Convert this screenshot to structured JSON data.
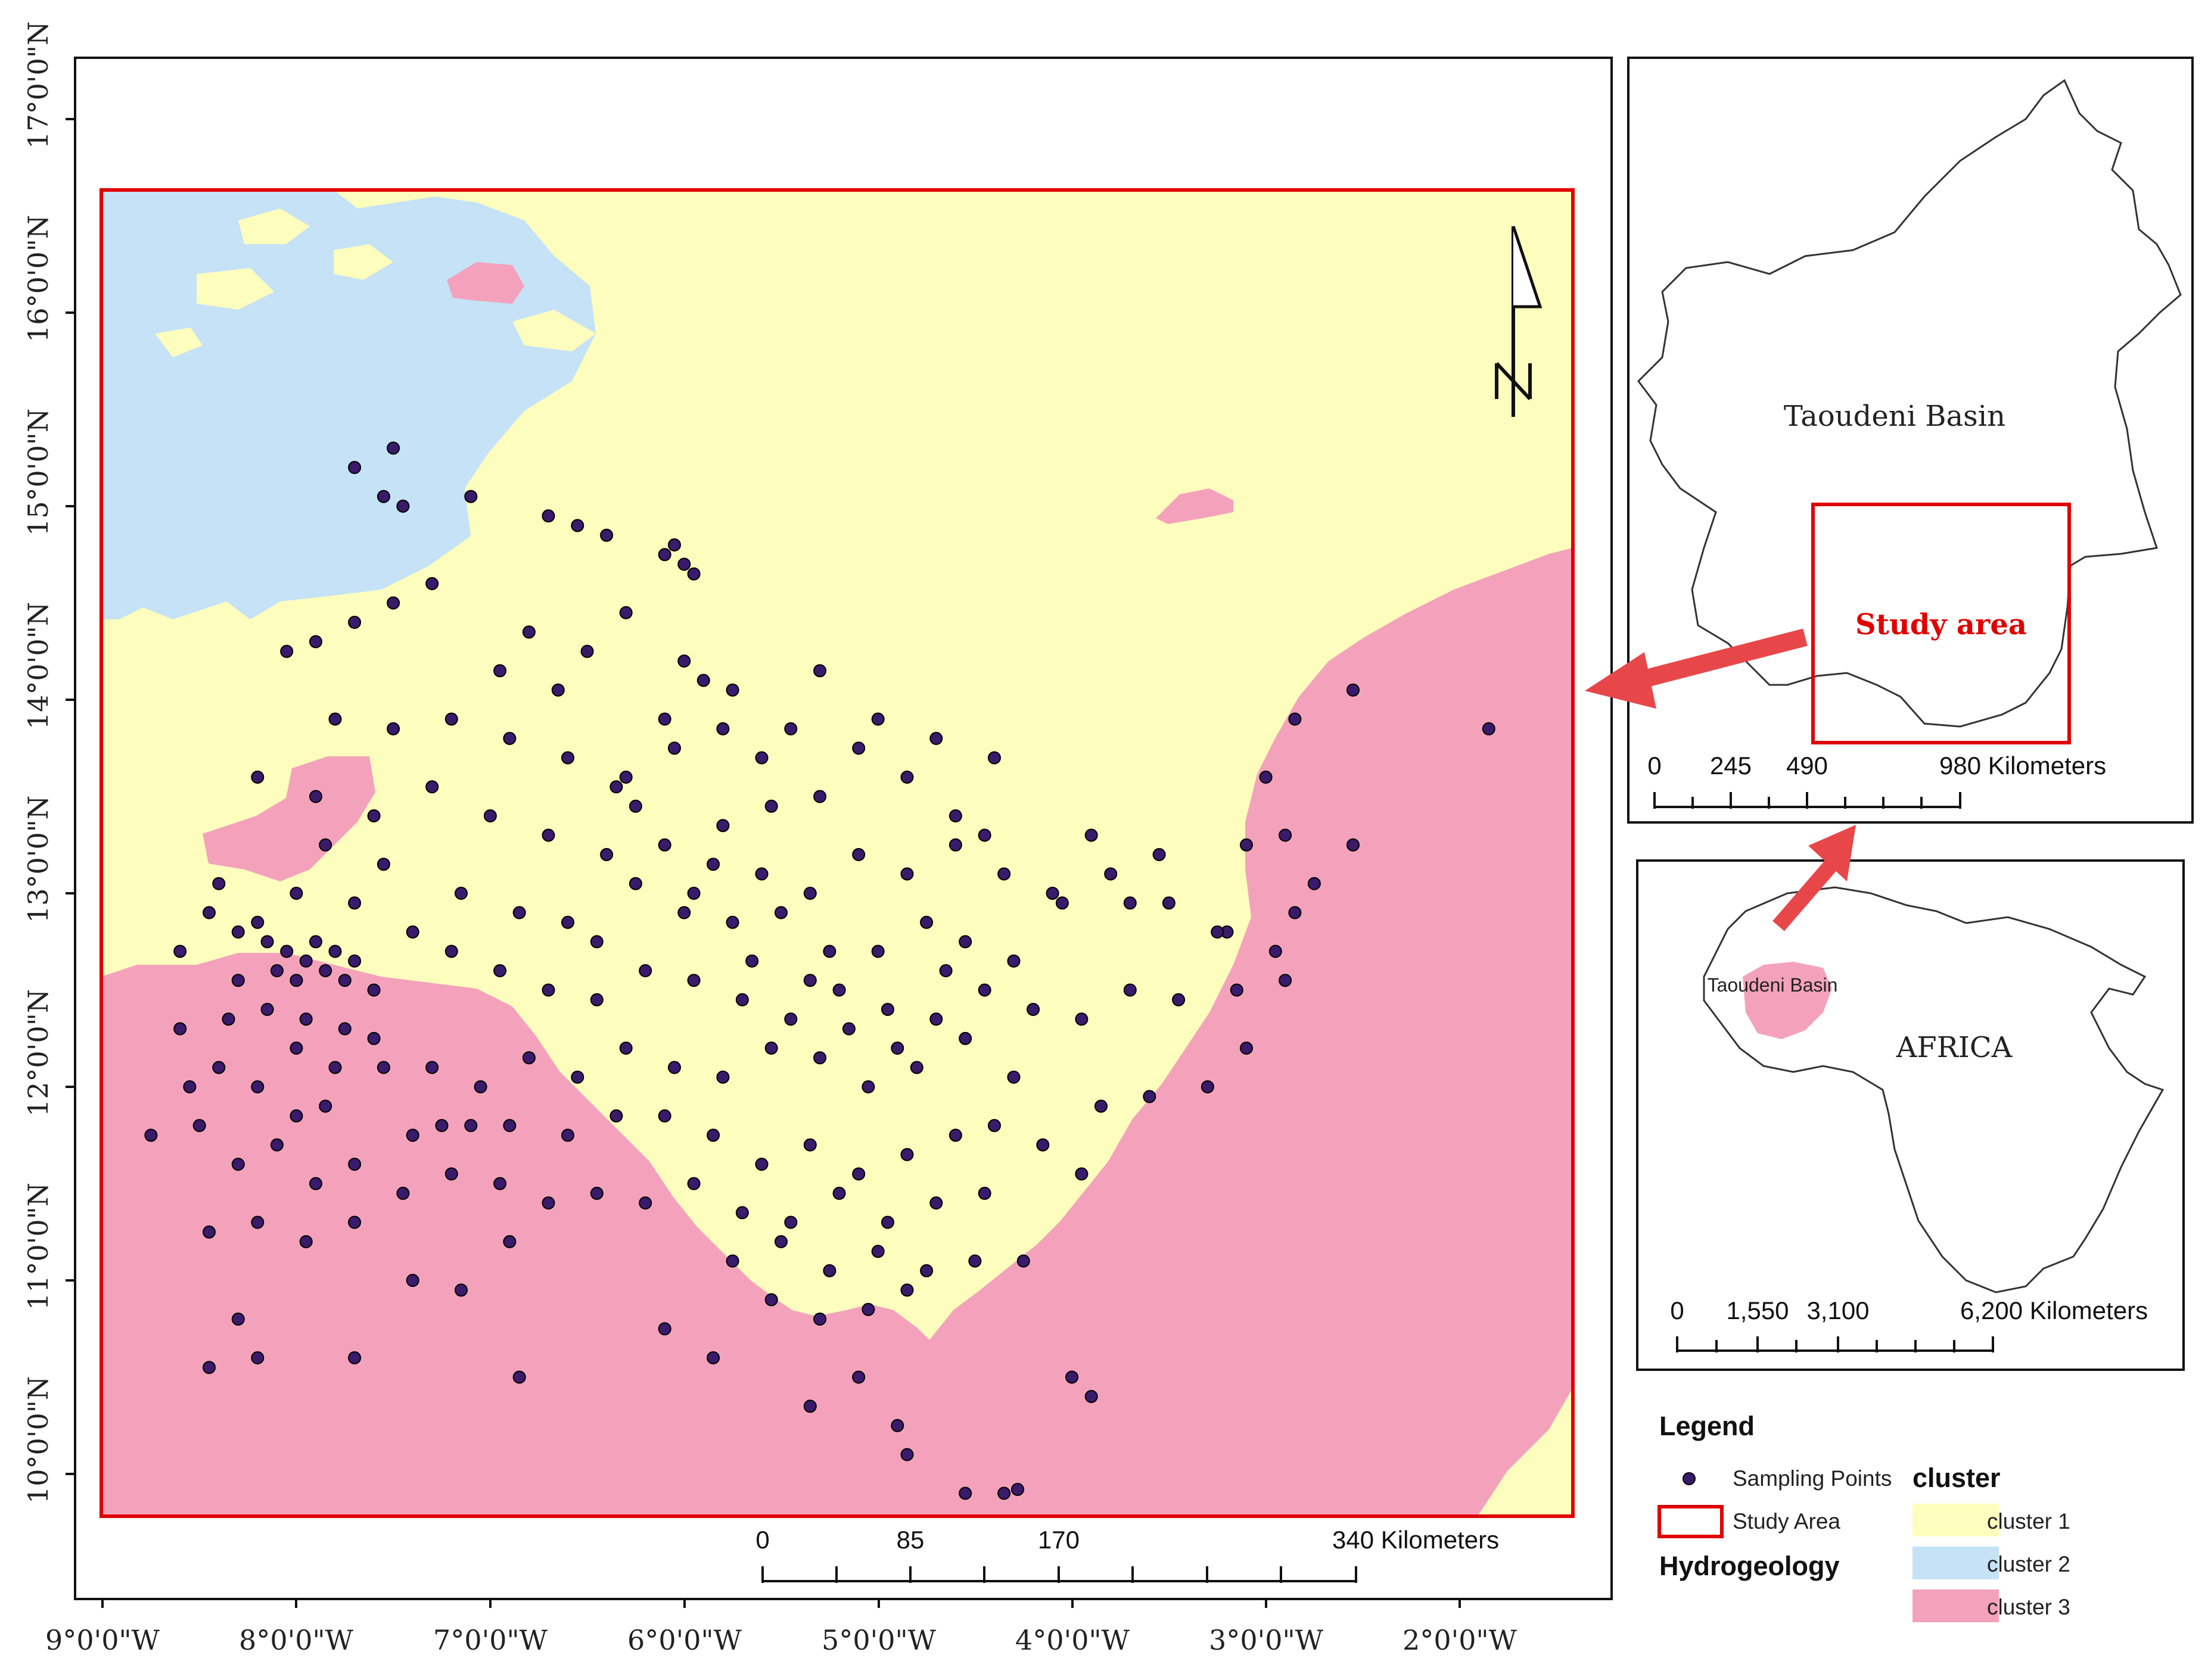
{
  "colors": {
    "cluster1": "#fdfdbd",
    "cluster2": "#c5e2f6",
    "cluster3": "#f4a2bc",
    "study_area_outline": "#e00000",
    "sampling_point": "#3a1a6b",
    "arrow": "#e8474a"
  },
  "main_map": {
    "latitude_labels": [
      "17°0'0\"N",
      "16°0'0\"N",
      "15°0'0\"N",
      "14°0'0\"N",
      "13°0'0\"N",
      "12°0'0\"N",
      "11°0'0\"N",
      "10°0'0\"N"
    ],
    "longitude_labels": [
      "9°0'0\"W",
      "8°0'0\"W",
      "7°0'0\"W",
      "6°0'0\"W",
      "5°0'0\"W",
      "4°0'0\"W",
      "3°0'0\"W",
      "2°0'0\"W"
    ],
    "north_arrow_label": "N",
    "scale_bar": {
      "labels": [
        "0",
        "85",
        "170",
        "340 Kilometers"
      ]
    },
    "sampling_points_lonlat": [
      [
        -7.7,
        15.2
      ],
      [
        -7.5,
        15.3
      ],
      [
        -7.55,
        15.05
      ],
      [
        -7.45,
        15.0
      ],
      [
        -7.1,
        15.05
      ],
      [
        -6.7,
        14.95
      ],
      [
        -6.55,
        14.9
      ],
      [
        -6.4,
        14.85
      ],
      [
        -6.1,
        14.75
      ],
      [
        -6.05,
        14.8
      ],
      [
        -6.0,
        14.7
      ],
      [
        -5.95,
        14.65
      ],
      [
        -7.9,
        14.3
      ],
      [
        -7.7,
        14.4
      ],
      [
        -7.5,
        14.5
      ],
      [
        -8.05,
        14.25
      ],
      [
        -7.3,
        14.6
      ],
      [
        -6.8,
        14.35
      ],
      [
        -6.5,
        14.25
      ],
      [
        -6.0,
        14.2
      ],
      [
        -5.9,
        14.1
      ],
      [
        -7.8,
        13.9
      ],
      [
        -7.5,
        13.85
      ],
      [
        -7.2,
        13.9
      ],
      [
        -6.9,
        13.8
      ],
      [
        -6.6,
        13.7
      ],
      [
        -6.3,
        13.6
      ],
      [
        -6.1,
        13.9
      ],
      [
        -5.8,
        13.85
      ],
      [
        -5.6,
        13.7
      ],
      [
        -5.3,
        13.5
      ],
      [
        -5.0,
        13.9
      ],
      [
        -4.7,
        13.8
      ],
      [
        -4.4,
        13.7
      ],
      [
        -8.2,
        13.6
      ],
      [
        -7.9,
        13.5
      ],
      [
        -7.6,
        13.4
      ],
      [
        -7.3,
        13.55
      ],
      [
        -7.0,
        13.4
      ],
      [
        -6.7,
        13.3
      ],
      [
        -6.4,
        13.2
      ],
      [
        -6.1,
        13.25
      ],
      [
        -5.85,
        13.15
      ],
      [
        -5.6,
        13.1
      ],
      [
        -5.35,
        13.0
      ],
      [
        -5.1,
        13.2
      ],
      [
        -4.85,
        13.1
      ],
      [
        -4.6,
        13.25
      ],
      [
        -4.35,
        13.1
      ],
      [
        -4.1,
        13.0
      ],
      [
        -3.8,
        13.1
      ],
      [
        -3.5,
        12.95
      ],
      [
        -3.2,
        12.8
      ],
      [
        -8.4,
        13.05
      ],
      [
        -8.2,
        12.85
      ],
      [
        -8.05,
        12.7
      ],
      [
        -7.95,
        12.65
      ],
      [
        -7.9,
        12.75
      ],
      [
        -7.85,
        12.6
      ],
      [
        -7.8,
        12.7
      ],
      [
        -8.0,
        12.55
      ],
      [
        -8.1,
        12.6
      ],
      [
        -7.75,
        12.55
      ],
      [
        -7.7,
        12.65
      ],
      [
        -8.15,
        12.75
      ],
      [
        -8.3,
        12.8
      ],
      [
        -8.45,
        12.9
      ],
      [
        -7.6,
        12.5
      ],
      [
        -7.4,
        12.8
      ],
      [
        -7.2,
        12.7
      ],
      [
        -6.95,
        12.6
      ],
      [
        -6.7,
        12.5
      ],
      [
        -6.45,
        12.45
      ],
      [
        -6.2,
        12.6
      ],
      [
        -5.95,
        12.55
      ],
      [
        -5.7,
        12.45
      ],
      [
        -5.45,
        12.35
      ],
      [
        -5.2,
        12.5
      ],
      [
        -4.95,
        12.4
      ],
      [
        -4.7,
        12.35
      ],
      [
        -4.45,
        12.5
      ],
      [
        -4.2,
        12.4
      ],
      [
        -3.95,
        12.35
      ],
      [
        -3.7,
        12.5
      ],
      [
        -3.45,
        12.45
      ],
      [
        -3.15,
        12.5
      ],
      [
        -2.9,
        12.55
      ],
      [
        -8.6,
        12.3
      ],
      [
        -8.4,
        12.1
      ],
      [
        -8.2,
        12.0
      ],
      [
        -8.0,
        12.2
      ],
      [
        -7.8,
        12.1
      ],
      [
        -7.6,
        12.25
      ],
      [
        -7.3,
        12.1
      ],
      [
        -7.05,
        12.0
      ],
      [
        -6.8,
        12.15
      ],
      [
        -6.55,
        12.05
      ],
      [
        -6.3,
        12.2
      ],
      [
        -6.05,
        12.1
      ],
      [
        -5.8,
        12.05
      ],
      [
        -5.55,
        12.2
      ],
      [
        -5.3,
        12.15
      ],
      [
        -5.05,
        12.0
      ],
      [
        -4.8,
        12.1
      ],
      [
        -4.55,
        12.25
      ],
      [
        -4.3,
        12.05
      ],
      [
        -3.85,
        11.9
      ],
      [
        -3.6,
        11.95
      ],
      [
        -3.3,
        12.0
      ],
      [
        -3.1,
        12.2
      ],
      [
        -8.75,
        11.75
      ],
      [
        -8.5,
        11.8
      ],
      [
        -8.3,
        11.6
      ],
      [
        -8.1,
        11.7
      ],
      [
        -7.9,
        11.5
      ],
      [
        -7.7,
        11.6
      ],
      [
        -7.45,
        11.45
      ],
      [
        -7.2,
        11.55
      ],
      [
        -6.95,
        11.5
      ],
      [
        -6.7,
        11.4
      ],
      [
        -6.45,
        11.45
      ],
      [
        -6.2,
        11.4
      ],
      [
        -5.95,
        11.5
      ],
      [
        -5.7,
        11.35
      ],
      [
        -5.45,
        11.3
      ],
      [
        -5.2,
        11.45
      ],
      [
        -4.95,
        11.3
      ],
      [
        -4.7,
        11.4
      ],
      [
        -4.45,
        11.45
      ],
      [
        -4.25,
        11.1
      ],
      [
        -8.45,
        11.25
      ],
      [
        -8.2,
        11.3
      ],
      [
        -7.95,
        11.2
      ],
      [
        -7.7,
        11.3
      ],
      [
        -7.4,
        11.0
      ],
      [
        -7.15,
        10.95
      ],
      [
        -6.9,
        11.2
      ],
      [
        -5.75,
        11.1
      ],
      [
        -5.5,
        11.2
      ],
      [
        -5.25,
        11.05
      ],
      [
        -5.0,
        11.15
      ],
      [
        -4.75,
        11.05
      ],
      [
        -4.5,
        11.1
      ],
      [
        -8.3,
        10.8
      ],
      [
        -8.2,
        10.6
      ],
      [
        -8.45,
        10.55
      ],
      [
        -7.7,
        10.6
      ],
      [
        -6.85,
        10.5
      ],
      [
        -6.1,
        10.75
      ],
      [
        -5.85,
        10.6
      ],
      [
        -5.35,
        10.35
      ],
      [
        -5.1,
        10.5
      ],
      [
        -4.9,
        10.25
      ],
      [
        -4.85,
        10.1
      ],
      [
        -4.55,
        9.9
      ],
      [
        -4.35,
        9.9
      ],
      [
        -4.28,
        9.92
      ],
      [
        -4.0,
        10.5
      ],
      [
        -3.9,
        10.4
      ],
      [
        -1.85,
        13.85
      ],
      [
        -2.55,
        14.05
      ],
      [
        -2.85,
        13.9
      ],
      [
        -3.0,
        13.6
      ],
      [
        -3.1,
        13.25
      ],
      [
        -2.9,
        13.3
      ],
      [
        -2.75,
        13.05
      ],
      [
        -2.55,
        13.25
      ],
      [
        -2.85,
        12.9
      ],
      [
        -2.95,
        12.7
      ],
      [
        -3.25,
        12.8
      ],
      [
        -3.55,
        13.2
      ],
      [
        -3.7,
        12.95
      ],
      [
        -3.9,
        13.3
      ],
      [
        -4.05,
        12.95
      ],
      [
        -6.25,
        13.45
      ],
      [
        -6.35,
        13.55
      ],
      [
        -5.95,
        13.0
      ],
      [
        -5.75,
        12.85
      ],
      [
        -5.5,
        12.9
      ],
      [
        -5.25,
        12.7
      ],
      [
        -5.0,
        12.7
      ],
      [
        -4.75,
        12.85
      ],
      [
        -4.55,
        12.75
      ],
      [
        -4.3,
        12.65
      ],
      [
        -5.65,
        12.65
      ],
      [
        -5.35,
        12.55
      ],
      [
        -5.15,
        12.3
      ],
      [
        -4.9,
        12.2
      ],
      [
        -4.65,
        12.6
      ],
      [
        -6.6,
        12.85
      ],
      [
        -6.85,
        12.9
      ],
      [
        -7.15,
        13.0
      ],
      [
        -6.45,
        12.75
      ],
      [
        -6.25,
        13.05
      ],
      [
        -6.0,
        12.9
      ],
      [
        -5.8,
        13.35
      ],
      [
        -5.55,
        13.45
      ],
      [
        -4.45,
        13.3
      ],
      [
        -4.6,
        13.4
      ],
      [
        -4.85,
        13.6
      ],
      [
        -7.55,
        13.15
      ],
      [
        -7.7,
        12.95
      ],
      [
        -8.3,
        12.55
      ],
      [
        -8.0,
        13.0
      ],
      [
        -7.85,
        13.25
      ],
      [
        -6.3,
        14.45
      ],
      [
        -6.65,
        14.05
      ],
      [
        -6.95,
        14.15
      ],
      [
        -5.45,
        13.85
      ],
      [
        -5.3,
        14.15
      ],
      [
        -5.1,
        13.75
      ],
      [
        -5.75,
        14.05
      ],
      [
        -6.05,
        13.75
      ],
      [
        -8.6,
        12.7
      ],
      [
        -8.55,
        12.0
      ],
      [
        -8.35,
        12.35
      ],
      [
        -8.15,
        12.4
      ],
      [
        -7.95,
        12.35
      ],
      [
        -7.75,
        12.3
      ],
      [
        -7.55,
        12.1
      ],
      [
        -7.4,
        11.75
      ],
      [
        -7.25,
        11.8
      ],
      [
        -8.0,
        11.85
      ],
      [
        -7.85,
        11.9
      ],
      [
        -6.6,
        11.75
      ],
      [
        -6.35,
        11.85
      ],
      [
        -6.1,
        11.85
      ],
      [
        -5.85,
        11.75
      ],
      [
        -5.6,
        11.6
      ],
      [
        -5.35,
        11.7
      ],
      [
        -5.1,
        11.55
      ],
      [
        -4.85,
        11.65
      ],
      [
        -4.6,
        11.75
      ],
      [
        -4.4,
        11.8
      ],
      [
        -4.15,
        11.7
      ],
      [
        -3.95,
        11.55
      ],
      [
        -7.1,
        11.8
      ],
      [
        -6.9,
        11.8
      ],
      [
        -5.05,
        10.85
      ],
      [
        -4.85,
        10.95
      ],
      [
        -5.3,
        10.8
      ],
      [
        -5.55,
        10.9
      ]
    ]
  },
  "overview_map": {
    "basin_label": "Taoudeni Basin",
    "study_area_label": "Study area",
    "scale_bar": {
      "labels": [
        "0",
        "245",
        "490",
        "980 Kilometers"
      ]
    }
  },
  "africa_map": {
    "basin_label": "Taoudeni Basin",
    "continent_label": "AFRICA",
    "scale_bar": {
      "labels": [
        "0",
        "1,550",
        "3,100",
        "6,200 Kilometers"
      ]
    }
  },
  "legend": {
    "title": "Legend",
    "sampling_points_label": "Sampling Points",
    "study_area_label": "Study Area",
    "hydrogeology_label": "Hydrogeology",
    "cluster_title": "cluster",
    "clusters": [
      "cluster 1",
      "cluster 2",
      "cluster 3"
    ]
  }
}
